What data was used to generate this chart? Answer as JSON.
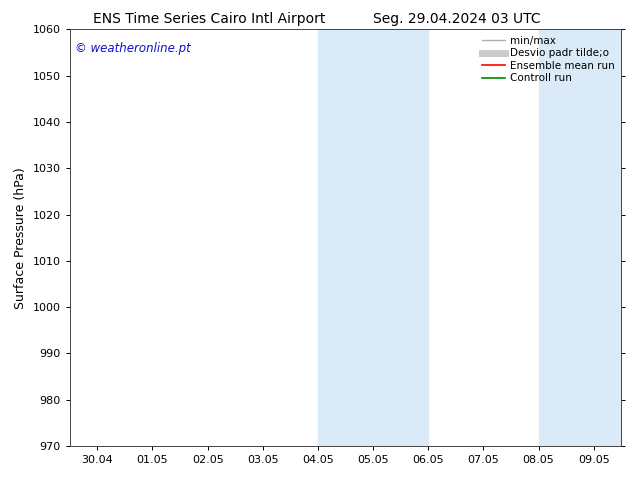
{
  "title_left": "ENS Time Series Cairo Intl Airport",
  "title_right": "Seg. 29.04.2024 03 UTC",
  "ylabel": "Surface Pressure (hPa)",
  "ylim": [
    970,
    1060
  ],
  "yticks": [
    970,
    980,
    990,
    1000,
    1010,
    1020,
    1030,
    1040,
    1050,
    1060
  ],
  "xtick_labels": [
    "30.04",
    "01.05",
    "02.05",
    "03.05",
    "04.05",
    "05.05",
    "06.05",
    "07.05",
    "08.05",
    "09.05"
  ],
  "watermark": "© weatheronline.pt",
  "watermark_color": "#1010cc",
  "bg_color": "#ffffff",
  "plot_bg_color": "#ffffff",
  "shaded_regions": [
    {
      "xstart": 4.0,
      "xend": 6.0,
      "color": "#daeaf8"
    },
    {
      "xstart": 8.0,
      "xend": 9.5,
      "color": "#daeaf8"
    }
  ],
  "legend_items": [
    {
      "label": "min/max",
      "color": "#b0b0b0",
      "lw": 1.0,
      "ls": "-"
    },
    {
      "label": "Desvio padr tilde;o",
      "color": "#cccccc",
      "lw": 5,
      "ls": "-"
    },
    {
      "label": "Ensemble mean run",
      "color": "#ff0000",
      "lw": 1.2,
      "ls": "-"
    },
    {
      "label": "Controll run",
      "color": "#008800",
      "lw": 1.2,
      "ls": "-"
    }
  ],
  "title_fontsize": 10,
  "tick_fontsize": 8,
  "label_fontsize": 9,
  "watermark_fontsize": 8.5,
  "legend_fontsize": 7.5
}
